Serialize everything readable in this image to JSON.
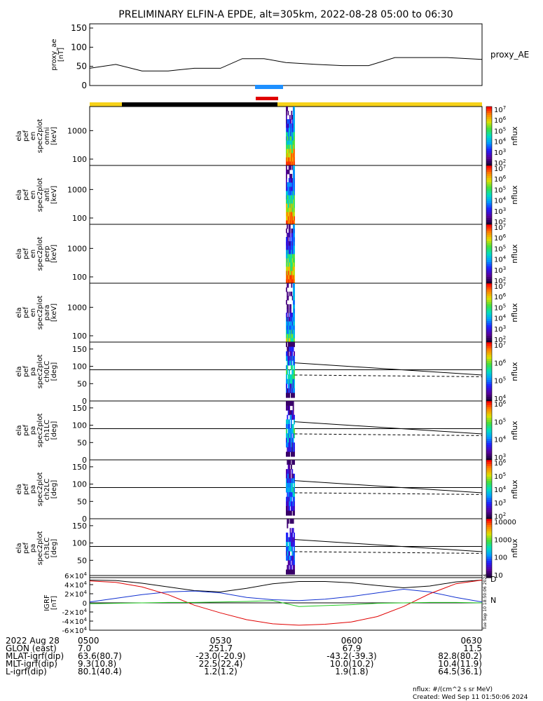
{
  "title": "PRELIMINARY ELFIN-A EPDE, alt=305km, 2022-08-28 05:00 to 06:30",
  "colors": {
    "blue_bar": "#1e90ff",
    "red_bar": "#e00000",
    "sunlit": "#f6d21a",
    "eclipse": "#000000",
    "bx": "#000000",
    "by": "#1030d0",
    "bz": "#e00000",
    "bt": "#22cc22"
  },
  "panels": {
    "ae": {
      "ylabel": "proxy_ae\n[nT]",
      "ticks": [
        "150",
        "100",
        "50",
        "0"
      ],
      "right_label": "proxy_AE"
    },
    "spec": [
      {
        "ylabel": "ela\npef\nen\nspec2plot\nomni\n[keV]",
        "ticks": [
          "1000",
          "100"
        ]
      },
      {
        "ylabel": "ela\npef\nen\nspec2plot\nanti\n[keV]",
        "ticks": [
          "1000",
          "100"
        ]
      },
      {
        "ylabel": "ela\npef\nen\nspec2plot\nperp\n[keV]",
        "ticks": [
          "1000",
          "100"
        ]
      },
      {
        "ylabel": "ela\npef\nen\nspec2plot\npara\n[keV]",
        "ticks": [
          "1000",
          "100"
        ]
      }
    ],
    "pa": [
      {
        "ylabel": "ela\npef\npa\nspec2plot\nch0LC\n[deg]",
        "ticks": [
          "150",
          "100",
          "50",
          "0"
        ]
      },
      {
        "ylabel": "ela\npef\npa\nspec2plot\nch1LC\n[deg]",
        "ticks": [
          "150",
          "100",
          "50",
          "0"
        ]
      },
      {
        "ylabel": "ela\npef\npa\nspec2plot\nch2LC\n[deg]",
        "ticks": [
          "150",
          "100",
          "50",
          "0"
        ]
      },
      {
        "ylabel": "ela\npef\npa\nspec2plot\nch3LC\n[deg]",
        "ticks": [
          "150",
          "100",
          "50"
        ]
      }
    ],
    "igrf": {
      "ylabel": "IGRF\n[nT]",
      "legend": [
        "N",
        "D"
      ]
    }
  },
  "colorbars": [
    {
      "label": "nflux",
      "ticks": [
        "10^7",
        "10^6",
        "10^5",
        "10^4",
        "10^3",
        "10^2"
      ]
    },
    {
      "label": "nflux",
      "ticks": [
        "10^7",
        "10^6",
        "10^5",
        "10^4",
        "10^3",
        "10^2"
      ]
    },
    {
      "label": "nflux",
      "ticks": [
        "10^7",
        "10^6",
        "10^5",
        "10^4",
        "10^3",
        "10^2"
      ]
    },
    {
      "label": "nflux",
      "ticks": [
        "10^7",
        "10^6",
        "10^5",
        "10^4",
        "10^3",
        "10^2"
      ]
    },
    {
      "label": "nflux",
      "ticks": [
        "10^7",
        "10^6",
        "10^5",
        "10^4"
      ]
    },
    {
      "label": "nflux",
      "ticks": [
        "10^6",
        "10^5",
        "10^4",
        "10^3"
      ]
    },
    {
      "label": "nflux",
      "ticks": [
        "10^6",
        "10^5",
        "10^4",
        "10^3",
        "10^2"
      ]
    },
    {
      "label": "nflux",
      "ticks": [
        "10000",
        "1000",
        "100",
        "10"
      ]
    }
  ],
  "footer": {
    "rows": [
      {
        "label": "2022 Aug 28",
        "values": [
          "0500",
          "0530",
          "0600",
          "0630"
        ]
      },
      {
        "label": "GLON (east)",
        "values": [
          "7.0",
          "251.7",
          "67.9",
          "11.5"
        ]
      },
      {
        "label": "MLAT-igrf(dip)",
        "values": [
          "63.6(80.7)",
          "-23.0(-20.9)",
          "-43.2(-39.3)",
          "82.8(80.2)"
        ]
      },
      {
        "label": "MLT-igrf(dip)",
        "values": [
          "9.3(10.8)",
          "22.5(22.4)",
          "10.0(10.2)",
          "10.4(11.9)"
        ]
      },
      {
        "label": "L-igrf(dip)",
        "values": [
          "80.1(40.4)",
          "1.2(1.2)",
          "1.9(1.8)",
          "64.5(36.1)"
        ]
      }
    ],
    "units": "nflux: #/(cm^2 s sr MeV)",
    "created": "Created: Wed Sep 11 01:50:06 2024",
    "vertical_stamp": "Tue Sep 10 18:50:06 2024"
  },
  "chart_data": [
    {
      "type": "line",
      "name": "proxy_AE",
      "x_minutes": [
        0,
        6,
        12,
        18,
        24,
        30,
        35,
        40,
        45,
        52,
        58,
        64,
        70,
        75,
        82,
        90
      ],
      "values": [
        45,
        55,
        38,
        38,
        45,
        45,
        70,
        70,
        60,
        55,
        52,
        52,
        73,
        73,
        73,
        68
      ],
      "ylim": [
        0,
        150
      ]
    },
    {
      "type": "heatmap",
      "name": "energy spectrograms (omni, anti, perp, para)",
      "x_range_minutes": [
        45.0,
        47.0
      ],
      "ylim_keV": [
        60,
        7000
      ],
      "log_y": true
    },
    {
      "type": "line",
      "name": "loss-cone (pa panels)",
      "x_minutes": [
        47.0,
        90.0
      ],
      "solid_deg": [
        110,
        75
      ],
      "dashed_deg": [
        75,
        70
      ],
      "ylim": [
        0,
        170
      ]
    },
    {
      "type": "line",
      "name": "IGRF",
      "ylim": [
        -60000,
        60000
      ],
      "x_minutes": [
        0,
        6,
        12,
        18,
        24,
        30,
        36,
        42,
        48,
        54,
        60,
        66,
        72,
        78,
        84,
        90
      ],
      "series": [
        {
          "name": "black",
          "values": [
            50000,
            49000,
            43000,
            35000,
            27000,
            24000,
            32000,
            42000,
            47000,
            47000,
            44000,
            38000,
            33000,
            37000,
            46000,
            50000
          ]
        },
        {
          "name": "blue",
          "values": [
            2000,
            10000,
            18000,
            24000,
            26000,
            22000,
            12000,
            7000,
            5000,
            8000,
            14000,
            22000,
            30000,
            24000,
            12000,
            2000
          ]
        },
        {
          "name": "red",
          "values": [
            48000,
            45000,
            35000,
            18000,
            -5000,
            -22000,
            -37000,
            -46000,
            -49000,
            -47000,
            -42000,
            -30000,
            -8000,
            20000,
            42000,
            50000
          ]
        },
        {
          "name": "green",
          "values": [
            -2000,
            -1000,
            0,
            1000,
            1000,
            2000,
            3000,
            5000,
            -8000,
            -6000,
            -4000,
            -1000,
            0,
            1000,
            1000,
            0
          ]
        }
      ]
    }
  ]
}
